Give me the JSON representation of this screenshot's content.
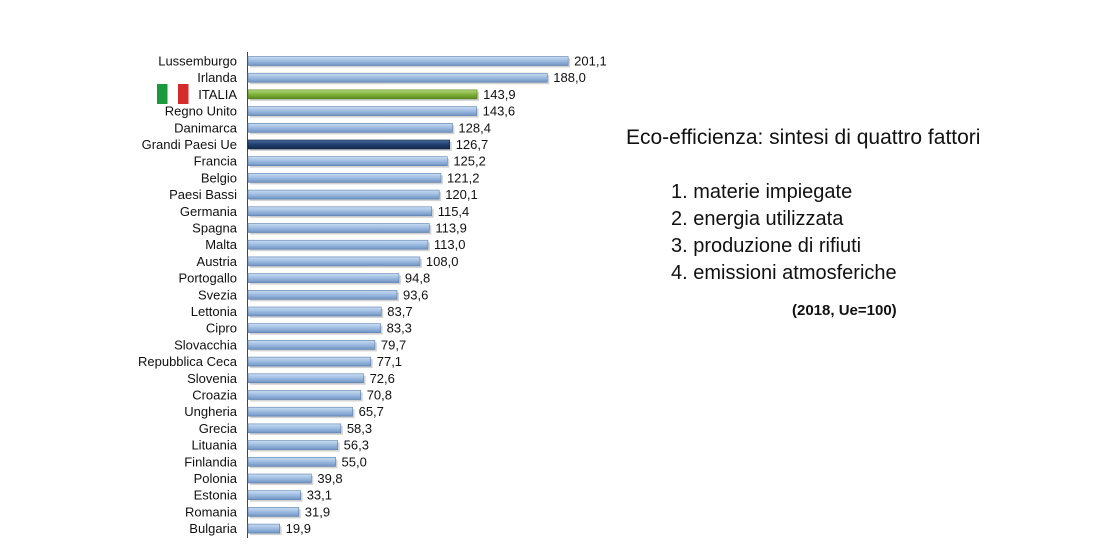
{
  "chart_data": {
    "type": "bar",
    "orientation": "horizontal",
    "categories": [
      "Lussemburgo",
      "Irlanda",
      "ITALIA",
      "Regno Unito",
      "Danimarca",
      "Grandi Paesi Ue",
      "Francia",
      "Belgio",
      "Paesi Bassi",
      "Germania",
      "Spagna",
      "Malta",
      "Austria",
      "Portogallo",
      "Svezia",
      "Lettonia",
      "Cipro",
      "Slovacchia",
      "Repubblica Ceca",
      "Slovenia",
      "Croazia",
      "Ungheria",
      "Grecia",
      "Lituania",
      "Finlandia",
      "Polonia",
      "Estonia",
      "Romania",
      "Bulgaria"
    ],
    "values": [
      201.1,
      188.0,
      143.9,
      143.6,
      128.4,
      126.7,
      125.2,
      121.2,
      120.1,
      115.4,
      113.9,
      113.0,
      108.0,
      94.8,
      93.6,
      83.7,
      83.3,
      79.7,
      77.1,
      72.6,
      70.8,
      65.7,
      58.3,
      56.3,
      55.0,
      39.8,
      33.1,
      31.9,
      19.9
    ],
    "value_labels": [
      "201,1",
      "188,0",
      "143,9",
      "143,6",
      "128,4",
      "126,7",
      "125,2",
      "121,2",
      "120,1",
      "115,4",
      "113,9",
      "113,0",
      "108,0",
      "94,8",
      "93,6",
      "83,7",
      "83,3",
      "79,7",
      "77,1",
      "72,6",
      "70,8",
      "65,7",
      "58,3",
      "56,3",
      "55,0",
      "39,8",
      "33,1",
      "31,9",
      "19,9"
    ],
    "highlights": {
      "ITALIA": "green",
      "Grandi Paesi Ue": "navy"
    },
    "colors": {
      "default": "#9dbbe0",
      "default_edge": "#5b7fae",
      "green": "#7fb23a",
      "navy": "#1f3f6e"
    },
    "xlim": [
      0,
      210
    ],
    "grid": false,
    "title": "",
    "xlabel": "",
    "ylabel": ""
  },
  "flag_icon": {
    "name": "italian-flag-icon",
    "colors": [
      "#1a9a3a",
      "#ffffff",
      "#d62b2b"
    ]
  },
  "side_panel": {
    "title": "Eco-efficienza: sintesi di quattro fattori",
    "items": [
      "1. materie impiegate",
      "2. energia utilizzata",
      "3. produzione di rifiuti",
      "4. emissioni atmosferiche"
    ],
    "note": "(2018, Ue=100)"
  }
}
